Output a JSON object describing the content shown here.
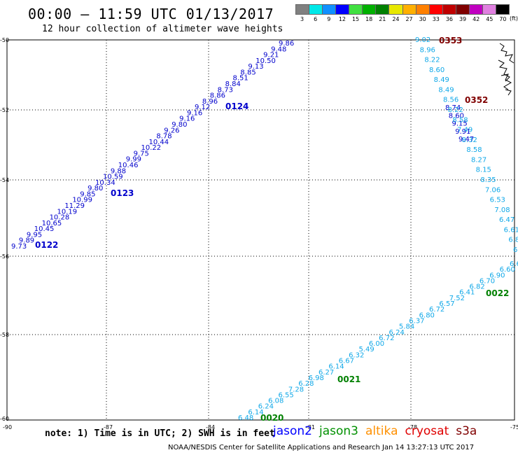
{
  "title": "00:00 – 11:59 UTC 01/13/2017",
  "subtitle": "12 hour collection of altimeter wave heights",
  "legend": {
    "labels": [
      "3",
      "6",
      "9",
      "12",
      "15",
      "18",
      "21",
      "24",
      "27",
      "30",
      "33",
      "36",
      "39",
      "42",
      "45",
      "70"
    ],
    "colors": [
      "#808080",
      "#00e8e8",
      "#1090ff",
      "#0000ff",
      "#40e040",
      "#00b000",
      "#008000",
      "#e8e800",
      "#ffb000",
      "#ff8000",
      "#ff0000",
      "#c00000",
      "#800000",
      "#c000c0",
      "#e080e0",
      "#000000"
    ],
    "unit": "(ft)"
  },
  "axes": {
    "lat_ticks": [
      "-50",
      "-52",
      "-54",
      "-56",
      "-58",
      "-60"
    ],
    "lon_ticks": [
      "-90",
      "-87",
      "-84",
      "-81",
      "-78",
      "-75"
    ]
  },
  "tracks": [
    {
      "name": "jason2-west",
      "color": "#0000cc",
      "values": [
        "9.73",
        "9.89",
        "9.95",
        "10.45",
        "10.65",
        "10.28",
        "10.19",
        "11.29",
        "10.99",
        "9.85",
        "9.80",
        "10.34",
        "10.59",
        "9.88",
        "10.46",
        "9.99",
        "9.75",
        "10.22",
        "10.44",
        "8.78",
        "9.26",
        "9.80",
        "9.16",
        "9.16",
        "9.12",
        "8.96",
        "8.86",
        "8.73",
        "8.84",
        "8.51",
        "8.85",
        "9.13",
        "10.50",
        "9.21",
        "9.48",
        "9.86"
      ],
      "times": [
        "0122",
        "0123",
        "0124"
      ]
    },
    {
      "name": "jason2-east",
      "color": "#0000cc",
      "values": [
        "8.74",
        "8.60",
        "9.15",
        "9.91",
        "9.47"
      ],
      "times": []
    },
    {
      "name": "altimeter-light-blue-east",
      "color": "#10a8e8",
      "values": [
        "9.02",
        "8.96",
        "8.22",
        "8.60",
        "8.49",
        "8.49",
        "8.56",
        "8.22",
        "8.58",
        "7.49",
        "8.32",
        "8.58",
        "8.27",
        "8.15",
        "8.35",
        "7.06",
        "6.53",
        "7.08",
        "6.47",
        "6.61",
        "6.8",
        "6"
      ],
      "times": []
    },
    {
      "name": "altimeter-light-blue-south",
      "color": "#10a8e8",
      "values": [
        "6.48",
        "6.14",
        "6.24",
        "6.08",
        "6.55",
        "7.28",
        "6.28",
        "6.98",
        "6.27",
        "6.14",
        "6.67",
        "6.32",
        "5.49",
        "6.00",
        "6.72",
        "6.24",
        "5.84",
        "6.37",
        "6.80",
        "6.72",
        "6.57",
        "7.52",
        "6.41",
        "6.82",
        "6.70",
        "6.90",
        "6.60",
        "6.6"
      ],
      "times": []
    }
  ],
  "time_labels": [
    {
      "text": "0122",
      "color": "#0000cc"
    },
    {
      "text": "0123",
      "color": "#0000cc"
    },
    {
      "text": "0124",
      "color": "#0000cc"
    },
    {
      "text": "0353",
      "color": "#800000"
    },
    {
      "text": "0352",
      "color": "#800000"
    },
    {
      "text": "0022",
      "color": "#008000"
    },
    {
      "text": "0021",
      "color": "#008000"
    },
    {
      "text": "0020",
      "color": "#008000"
    }
  ],
  "note": "note: 1) Time is in UTC; 2) SWH is in feet",
  "satellites": [
    {
      "name": "jason2",
      "color": "#0000ff"
    },
    {
      "name": "jason3",
      "color": "#009000"
    },
    {
      "name": "altika",
      "color": "#ff9000"
    },
    {
      "name": "cryosat",
      "color": "#e00000"
    },
    {
      "name": "s3a",
      "color": "#800000"
    }
  ],
  "footer": "NOAA/NESDIS Center for Satellite Applications and Research    Jan 14 13:27:13 UTC 2017"
}
